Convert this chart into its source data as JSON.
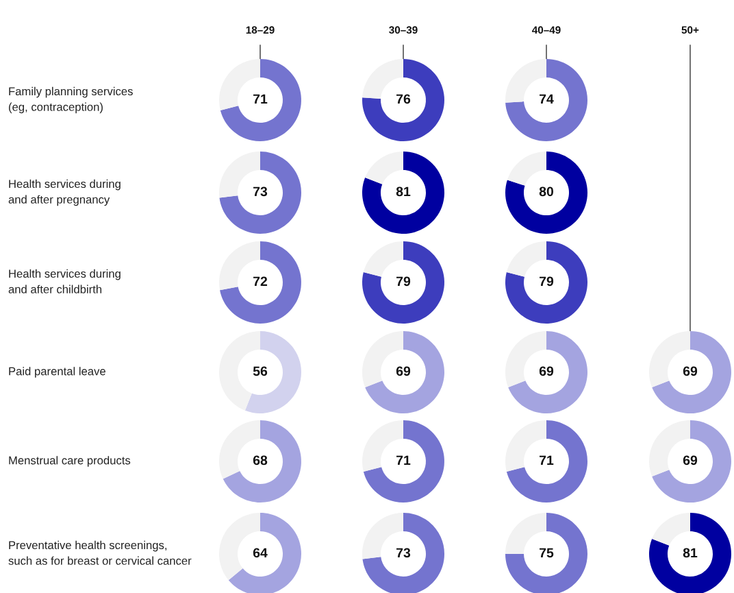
{
  "chart_data": [
    {
      "type": "other",
      "annotations": [
        "18–29",
        "30–39",
        "40–49",
        "50+",
        "Family planning services\n(eg, contraception)",
        "Health services during\nand after pregnancy",
        "Health services during\nand after childbirth",
        "Paid parental leave",
        "Menstrual care products",
        "Preventative health screenings,\nsuch as for breast or cervical cancer"
      ]
    },
    {
      "type": "donut",
      "categories": [
        null,
        null
      ],
      "values": [
        71,
        29
      ],
      "colors": [
        "#7474cf",
        "#f2f2f2"
      ],
      "value_labels": [
        "71",
        null
      ]
    },
    {
      "type": "donut",
      "categories": [
        null,
        null
      ],
      "values": [
        76,
        24
      ],
      "colors": [
        "#3d3dbd",
        "#f2f2f2"
      ],
      "value_labels": [
        "76",
        null
      ]
    },
    {
      "type": "donut",
      "categories": [
        null,
        null
      ],
      "values": [
        74,
        26
      ],
      "colors": [
        "#7474cf",
        "#f2f2f2"
      ],
      "value_labels": [
        "74",
        null
      ]
    },
    {
      "type": "donut",
      "categories": [
        null,
        null
      ],
      "values": [
        73,
        27
      ],
      "colors": [
        "#7474cf",
        "#f2f2f2"
      ],
      "value_labels": [
        "73",
        null
      ]
    },
    {
      "type": "donut",
      "categories": [
        null,
        null
      ],
      "values": [
        81,
        19
      ],
      "colors": [
        "#0000a0",
        "#f2f2f2"
      ],
      "value_labels": [
        "81",
        null
      ]
    },
    {
      "type": "donut",
      "categories": [
        null,
        null
      ],
      "values": [
        80,
        20
      ],
      "colors": [
        "#0000a0",
        "#f2f2f2"
      ],
      "value_labels": [
        "80",
        null
      ]
    },
    {
      "type": "donut",
      "categories": [
        null,
        null
      ],
      "values": [
        72,
        28
      ],
      "colors": [
        "#7474cf",
        "#f2f2f2"
      ],
      "value_labels": [
        "72",
        null
      ]
    },
    {
      "type": "donut",
      "categories": [
        null,
        null
      ],
      "values": [
        79,
        21
      ],
      "colors": [
        "#3d3dbd",
        "#f2f2f2"
      ],
      "value_labels": [
        "79",
        null
      ]
    },
    {
      "type": "donut",
      "categories": [
        null,
        null
      ],
      "values": [
        79,
        21
      ],
      "colors": [
        "#3d3dbd",
        "#f2f2f2"
      ],
      "value_labels": [
        "79",
        null
      ]
    },
    {
      "type": "donut",
      "categories": [
        null,
        null
      ],
      "values": [
        56,
        44
      ],
      "colors": [
        "#d2d2ee",
        "#f2f2f2"
      ],
      "value_labels": [
        "56",
        null
      ]
    },
    {
      "type": "donut",
      "categories": [
        null,
        null
      ],
      "values": [
        69,
        31
      ],
      "colors": [
        "#a4a4e0",
        "#f2f2f2"
      ],
      "value_labels": [
        "69",
        null
      ]
    },
    {
      "type": "donut",
      "categories": [
        null,
        null
      ],
      "values": [
        69,
        31
      ],
      "colors": [
        "#a4a4e0",
        "#f2f2f2"
      ],
      "value_labels": [
        "69",
        null
      ]
    },
    {
      "type": "donut",
      "categories": [
        null,
        null
      ],
      "values": [
        69,
        31
      ],
      "colors": [
        "#a4a4e0",
        "#f2f2f2"
      ],
      "value_labels": [
        "69",
        null
      ]
    },
    {
      "type": "donut",
      "categories": [
        null,
        null
      ],
      "values": [
        68,
        32
      ],
      "colors": [
        "#a4a4e0",
        "#f2f2f2"
      ],
      "value_labels": [
        "68",
        null
      ]
    },
    {
      "type": "donut",
      "categories": [
        null,
        null
      ],
      "values": [
        71,
        29
      ],
      "colors": [
        "#7474cf",
        "#f2f2f2"
      ],
      "value_labels": [
        "71",
        null
      ]
    },
    {
      "type": "donut",
      "categories": [
        null,
        null
      ],
      "values": [
        71,
        29
      ],
      "colors": [
        "#7474cf",
        "#f2f2f2"
      ],
      "value_labels": [
        "71",
        null
      ]
    },
    {
      "type": "donut",
      "categories": [
        null,
        null
      ],
      "values": [
        69,
        31
      ],
      "colors": [
        "#a4a4e0",
        "#f2f2f2"
      ],
      "value_labels": [
        "69",
        null
      ]
    },
    {
      "type": "donut",
      "categories": [
        null,
        null
      ],
      "values": [
        64,
        36
      ],
      "colors": [
        "#a4a4e0",
        "#f2f2f2"
      ],
      "value_labels": [
        "64",
        null
      ]
    },
    {
      "type": "donut",
      "categories": [
        null,
        null
      ],
      "values": [
        73,
        27
      ],
      "colors": [
        "#7474cf",
        "#f2f2f2"
      ],
      "value_labels": [
        "73",
        null
      ]
    },
    {
      "type": "donut",
      "categories": [
        null,
        null
      ],
      "values": [
        75,
        25
      ],
      "colors": [
        "#7474cf",
        "#f2f2f2"
      ],
      "value_labels": [
        "75",
        null
      ]
    },
    {
      "type": "donut",
      "categories": [
        null,
        null
      ],
      "values": [
        81,
        19
      ],
      "colors": [
        "#0000a0",
        "#f2f2f2"
      ],
      "value_labels": [
        "81",
        null
      ]
    }
  ]
}
